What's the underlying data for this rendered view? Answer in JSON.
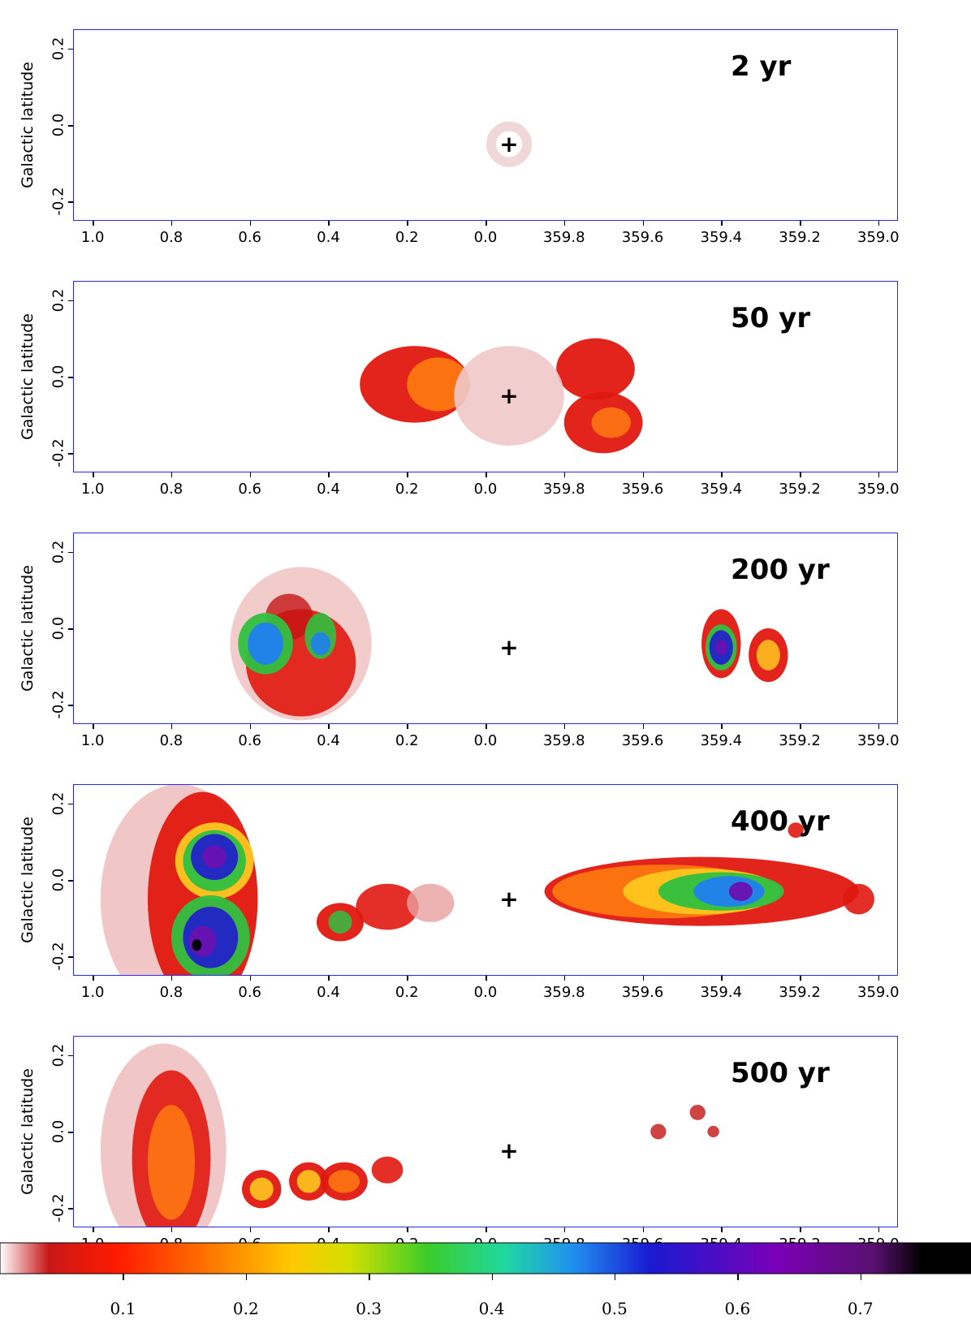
{
  "chart_data": {
    "type": "heatmap",
    "xlabel": "",
    "ylabel": "Galactic latitude",
    "x_ticks": [
      "1.0",
      "0.8",
      "0.6",
      "0.4",
      "0.2",
      "0.0",
      "359.8",
      "359.6",
      "359.4",
      "359.2",
      "359.0"
    ],
    "y_ticks": [
      "0.2",
      "0.0",
      "-0.2"
    ],
    "xlim": [
      1.05,
      -1.05
    ],
    "ylim": [
      -0.25,
      0.25
    ],
    "marker": {
      "label": "+",
      "l": 359.94,
      "b": -0.05
    },
    "colorbar": {
      "ticks": [
        "0.1",
        "0.2",
        "0.3",
        "0.4",
        "0.5",
        "0.6",
        "0.7"
      ],
      "range": [
        0.0,
        0.79
      ]
    },
    "panels": [
      {
        "title": "2 yr"
      },
      {
        "title": "50 yr"
      },
      {
        "title": "200 yr"
      },
      {
        "title": "400 yr"
      },
      {
        "title": "500 yr"
      }
    ]
  }
}
